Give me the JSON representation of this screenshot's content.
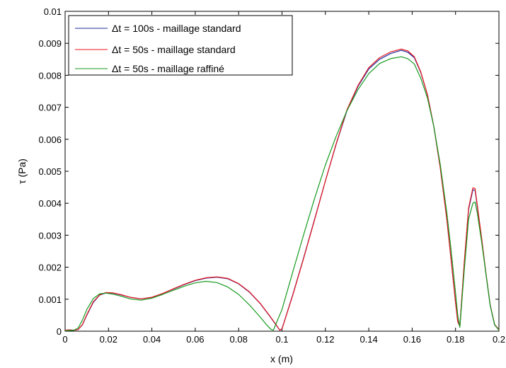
{
  "chart_data": {
    "type": "line",
    "xlabel": "x (m)",
    "ylabel": "τ (Pa)",
    "xlim": [
      0,
      0.2
    ],
    "ylim": [
      0,
      0.01
    ],
    "x_ticks": [
      0,
      0.02,
      0.04,
      0.06,
      0.08,
      0.1,
      0.12,
      0.14,
      0.16,
      0.18,
      0.2
    ],
    "x_tick_labels": [
      "0",
      "0.02",
      "0.04",
      "0.06",
      "0.08",
      "0.1",
      "0.12",
      "0.14",
      "0.16",
      "0.18",
      "0.2"
    ],
    "y_ticks": [
      0,
      0.001,
      0.002,
      0.003,
      0.004,
      0.005,
      0.006,
      0.007,
      0.008,
      0.009,
      0.01
    ],
    "y_tick_labels": [
      "0",
      "0.001",
      "0.002",
      "0.003",
      "0.004",
      "0.005",
      "0.006",
      "0.007",
      "0.008",
      "0.009",
      "0.01"
    ],
    "grid": false,
    "legend_position": "top-left",
    "series": [
      {
        "name": "Δt = 100s - maillage standard",
        "color": "#1f2f9f",
        "x": [
          0,
          0.002,
          0.004,
          0.006,
          0.008,
          0.01,
          0.013,
          0.016,
          0.019,
          0.022,
          0.026,
          0.03,
          0.035,
          0.04,
          0.045,
          0.05,
          0.055,
          0.06,
          0.065,
          0.07,
          0.075,
          0.08,
          0.085,
          0.09,
          0.094,
          0.097,
          0.099,
          0.1,
          0.105,
          0.11,
          0.115,
          0.12,
          0.125,
          0.13,
          0.135,
          0.14,
          0.145,
          0.15,
          0.155,
          0.158,
          0.161,
          0.164,
          0.167,
          0.17,
          0.173,
          0.176,
          0.178,
          0.18,
          0.181,
          0.182,
          0.184,
          0.186,
          0.188,
          0.189,
          0.19,
          0.192,
          0.194,
          0.196,
          0.198,
          0.2
        ],
        "y": [
          3e-05,
          4e-05,
          3e-05,
          5e-05,
          0.0002,
          0.0005,
          0.0009,
          0.00113,
          0.0012,
          0.00119,
          0.00113,
          0.00106,
          0.00101,
          0.00106,
          0.00118,
          0.00132,
          0.00146,
          0.00158,
          0.00166,
          0.00169,
          0.00164,
          0.00148,
          0.00122,
          0.00086,
          0.0005,
          0.00022,
          3e-05,
          8e-05,
          0.00115,
          0.0023,
          0.0035,
          0.0047,
          0.00585,
          0.0069,
          0.00765,
          0.0082,
          0.0085,
          0.00868,
          0.00878,
          0.00872,
          0.00855,
          0.00808,
          0.0074,
          0.0064,
          0.0051,
          0.0035,
          0.0022,
          0.0009,
          0.0003,
          0.00015,
          0.0021,
          0.0038,
          0.00442,
          0.0044,
          0.0039,
          0.0029,
          0.0018,
          0.0008,
          0.0002,
          5e-05
        ]
      },
      {
        "name": "Δt = 50s - maillage standard",
        "color": "#e8161d",
        "x": [
          0,
          0.002,
          0.004,
          0.006,
          0.008,
          0.01,
          0.013,
          0.016,
          0.019,
          0.022,
          0.026,
          0.03,
          0.035,
          0.04,
          0.045,
          0.05,
          0.055,
          0.06,
          0.065,
          0.07,
          0.075,
          0.08,
          0.085,
          0.09,
          0.094,
          0.097,
          0.099,
          0.1,
          0.105,
          0.11,
          0.115,
          0.12,
          0.125,
          0.13,
          0.135,
          0.14,
          0.145,
          0.15,
          0.155,
          0.158,
          0.161,
          0.164,
          0.167,
          0.17,
          0.173,
          0.176,
          0.178,
          0.18,
          0.181,
          0.182,
          0.184,
          0.186,
          0.188,
          0.189,
          0.19,
          0.192,
          0.194,
          0.196,
          0.198,
          0.2
        ],
        "y": [
          3e-05,
          4e-05,
          3e-05,
          5e-05,
          0.00021,
          0.00052,
          0.00092,
          0.00114,
          0.00121,
          0.0012,
          0.00114,
          0.00106,
          0.00101,
          0.00106,
          0.00118,
          0.00133,
          0.00147,
          0.00159,
          0.00167,
          0.0017,
          0.00165,
          0.00149,
          0.00123,
          0.00087,
          0.00051,
          0.00023,
          3e-05,
          7e-05,
          0.00113,
          0.00228,
          0.00348,
          0.0047,
          0.00587,
          0.00693,
          0.00768,
          0.00824,
          0.00855,
          0.00873,
          0.00882,
          0.00876,
          0.00858,
          0.0081,
          0.0074,
          0.0064,
          0.0051,
          0.0035,
          0.0022,
          0.0009,
          0.0003,
          0.00015,
          0.00215,
          0.00385,
          0.00448,
          0.00446,
          0.00395,
          0.00292,
          0.00182,
          0.00082,
          0.00021,
          5e-05
        ]
      },
      {
        "name": "Δt = 50s - maillage raffiné",
        "color": "#159a1f",
        "x": [
          0,
          0.002,
          0.004,
          0.006,
          0.008,
          0.01,
          0.013,
          0.016,
          0.019,
          0.022,
          0.026,
          0.03,
          0.035,
          0.04,
          0.045,
          0.05,
          0.055,
          0.06,
          0.065,
          0.07,
          0.075,
          0.08,
          0.085,
          0.09,
          0.093,
          0.095,
          0.096,
          0.1,
          0.105,
          0.11,
          0.115,
          0.12,
          0.125,
          0.13,
          0.135,
          0.14,
          0.145,
          0.15,
          0.155,
          0.158,
          0.161,
          0.164,
          0.167,
          0.17,
          0.173,
          0.176,
          0.178,
          0.18,
          0.181,
          0.182,
          0.184,
          0.186,
          0.188,
          0.189,
          0.19,
          0.192,
          0.194,
          0.196,
          0.198,
          0.2
        ],
        "y": [
          1e-05,
          2e-05,
          3e-05,
          0.0001,
          0.00035,
          0.00068,
          0.00102,
          0.00117,
          0.00119,
          0.00116,
          0.00109,
          0.00101,
          0.00097,
          0.00103,
          0.00115,
          0.00128,
          0.00141,
          0.00151,
          0.00156,
          0.00152,
          0.00138,
          0.00115,
          0.00082,
          0.00044,
          0.00019,
          5e-05,
          3e-05,
          0.00068,
          0.00186,
          0.00302,
          0.00415,
          0.0052,
          0.0061,
          0.0069,
          0.00755,
          0.00805,
          0.00837,
          0.00852,
          0.00858,
          0.00852,
          0.00835,
          0.0079,
          0.0073,
          0.0064,
          0.0052,
          0.0037,
          0.0025,
          0.0012,
          0.0005,
          0.00012,
          0.0019,
          0.0035,
          0.004,
          0.00404,
          0.0037,
          0.0028,
          0.0018,
          0.0008,
          0.0002,
          3e-05
        ]
      }
    ]
  }
}
